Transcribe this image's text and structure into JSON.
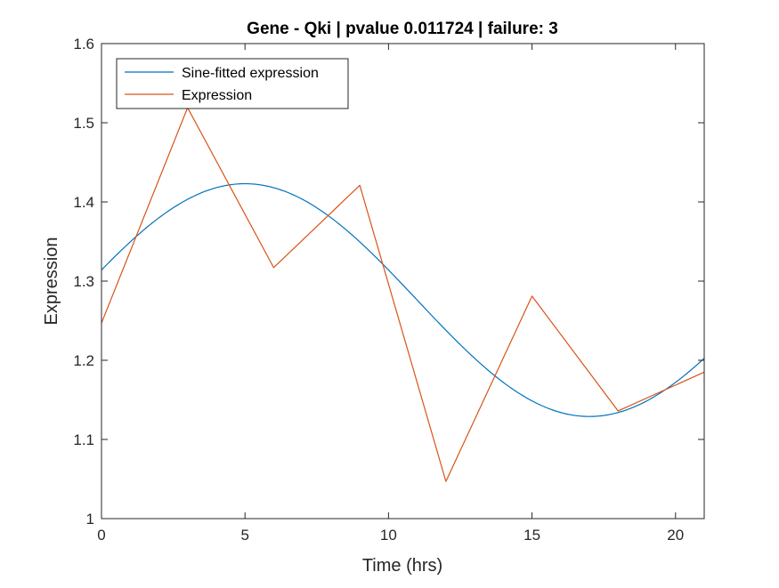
{
  "chart_data": {
    "type": "line",
    "title": "Gene - Qki | pvalue 0.011724 | failure: 3",
    "xlabel": "Time (hrs)",
    "ylabel": "Expression",
    "xlim": [
      0,
      21
    ],
    "ylim": [
      1,
      1.6
    ],
    "xticks": [
      0,
      5,
      10,
      15,
      20
    ],
    "xtick_labels": [
      "0",
      "5",
      "10",
      "15",
      "20"
    ],
    "yticks": [
      1,
      1.1,
      1.2,
      1.3,
      1.4,
      1.5,
      1.6
    ],
    "ytick_labels": [
      "1",
      "1.1",
      "1.2",
      "1.3",
      "1.4",
      "1.5",
      "1.6"
    ],
    "grid": false,
    "legend": {
      "location": "top-left"
    },
    "series": [
      {
        "name": "Sine-fitted expression",
        "color": "#0072BD",
        "style": "smooth",
        "fit": {
          "model": "sine",
          "mean": 1.276,
          "amplitude": 0.147,
          "period_hrs": 24,
          "peak_hrs": 5.0
        },
        "x": [
          0,
          1,
          2,
          3,
          4,
          5,
          6,
          7,
          8,
          9,
          10,
          11,
          12,
          13,
          14,
          15,
          16,
          17,
          18,
          19,
          20,
          21
        ],
        "y": [
          1.314,
          1.353,
          1.386,
          1.403,
          1.418,
          1.423,
          1.418,
          1.403,
          1.38,
          1.35,
          1.316,
          1.276,
          1.238,
          1.203,
          1.172,
          1.149,
          1.133,
          1.129,
          1.133,
          1.149,
          1.172,
          1.203
        ]
      },
      {
        "name": "Expression",
        "color": "#D95319",
        "style": "linear",
        "x": [
          0,
          3,
          6,
          9,
          12,
          15,
          18,
          21
        ],
        "y": [
          1.247,
          1.519,
          1.317,
          1.421,
          1.047,
          1.281,
          1.136,
          1.185
        ]
      }
    ]
  }
}
